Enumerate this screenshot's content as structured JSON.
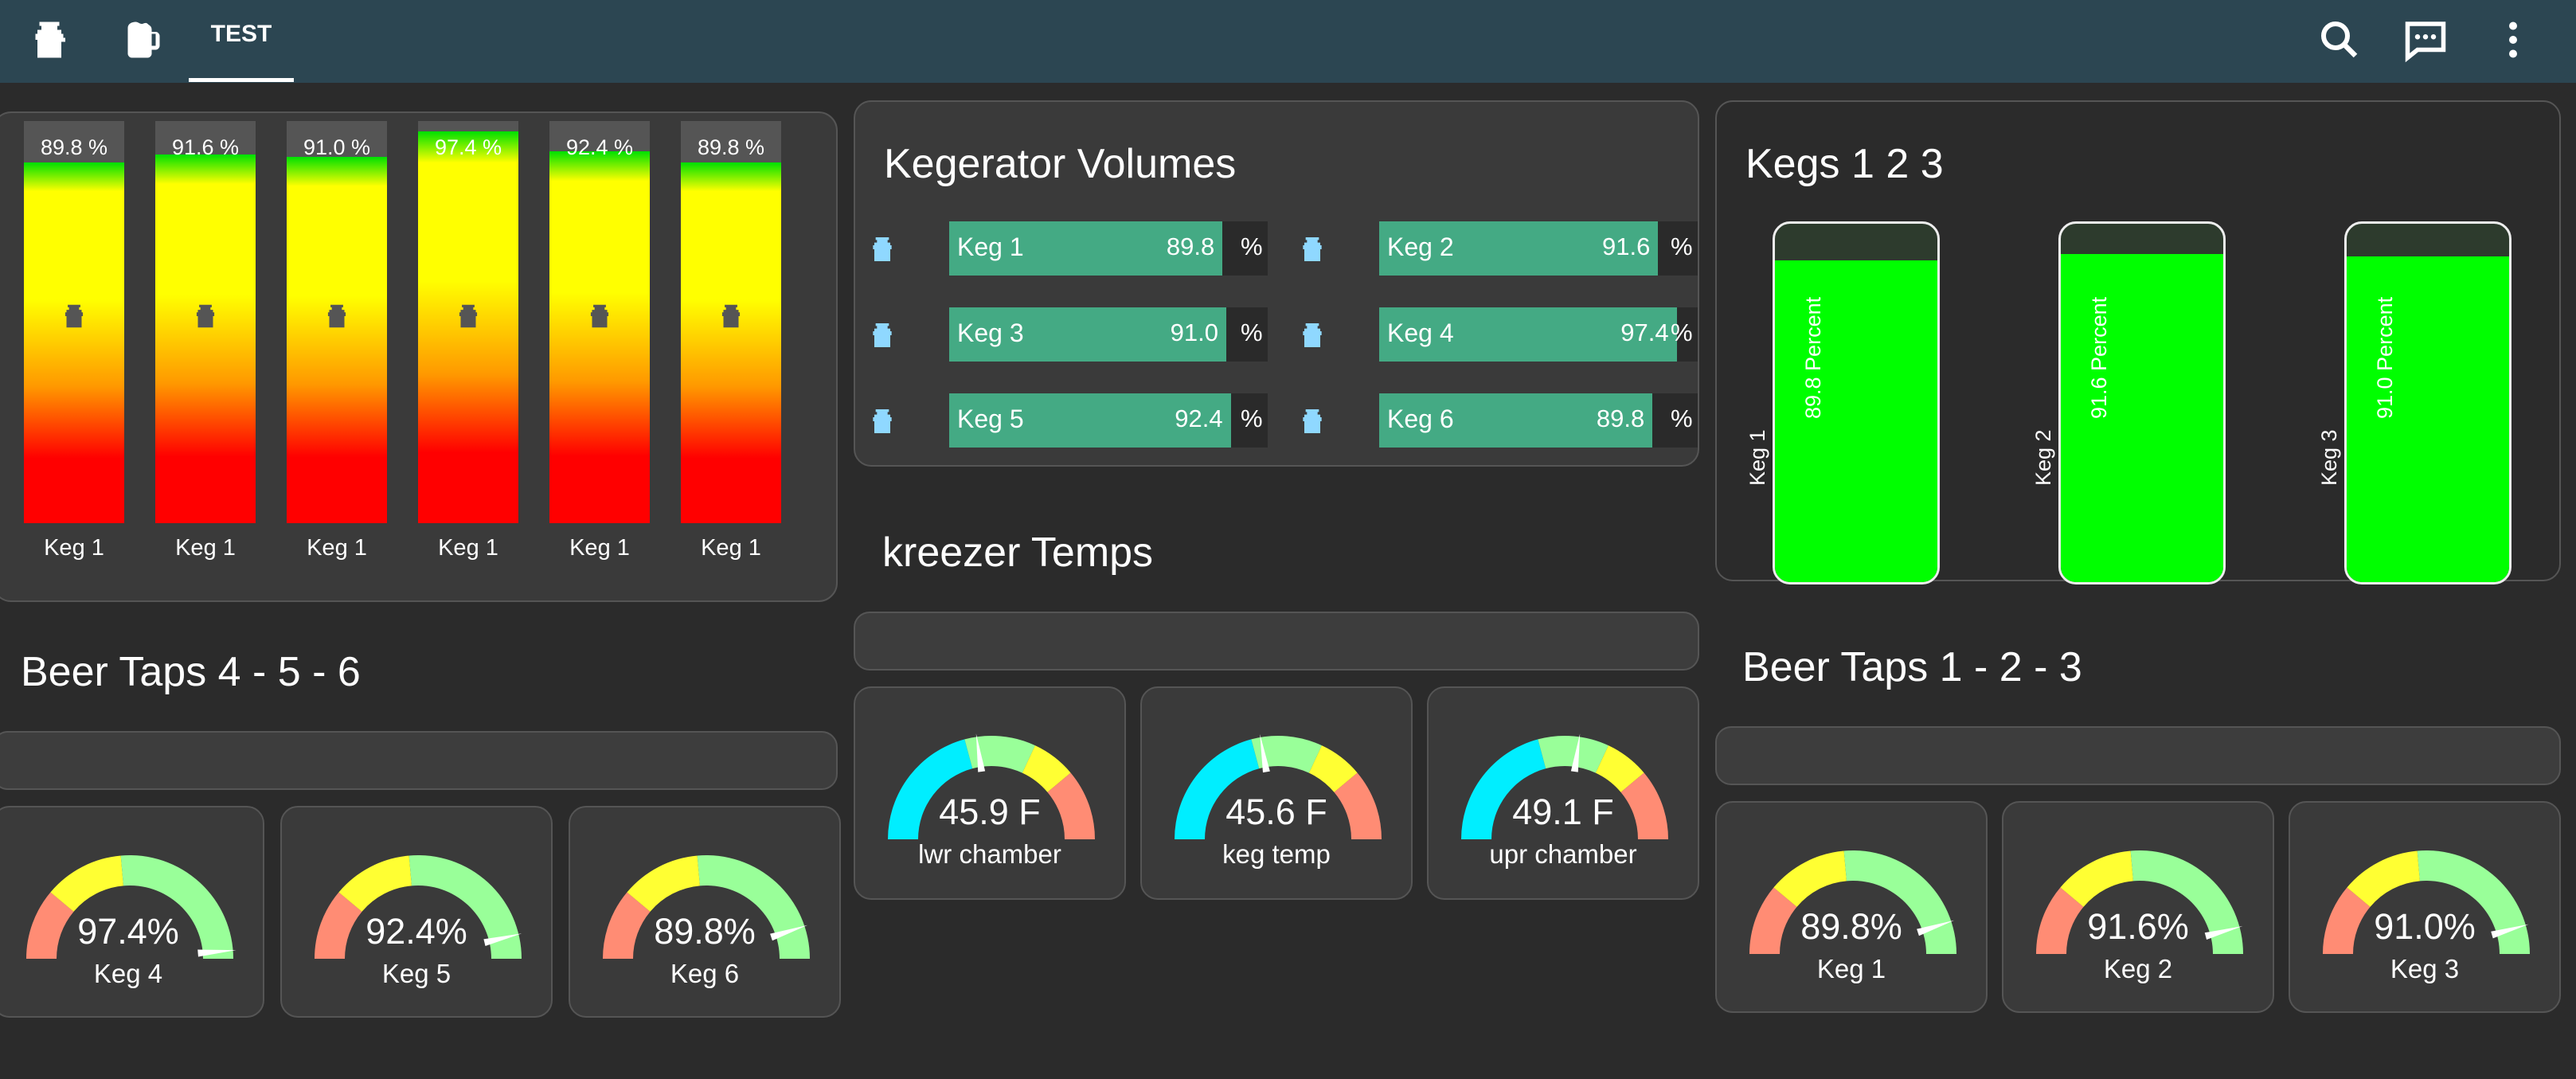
{
  "topbar": {
    "tab_label": "TEST",
    "icons": [
      "keg-icon",
      "beer-mug-icon",
      "search-icon",
      "chat-icon",
      "more-vert-icon"
    ],
    "color": "#2c4652"
  },
  "vertical_bars": {
    "items": [
      {
        "pct": "89.8 %",
        "label": "Keg 1",
        "value": 89.8
      },
      {
        "pct": "91.6 %",
        "label": "Keg 1",
        "value": 91.6
      },
      {
        "pct": "91.0 %",
        "label": "Keg 1",
        "value": 91.0
      },
      {
        "pct": "97.4 %",
        "label": "Keg 1",
        "value": 97.4
      },
      {
        "pct": "92.4 %",
        "label": "Keg 1",
        "value": 92.4
      },
      {
        "pct": "89.8 %",
        "label": "Keg 1",
        "value": 89.8
      }
    ]
  },
  "volumes": {
    "title": "Kegerator Volumes",
    "unit": "%",
    "items": [
      {
        "name": "Keg 1",
        "value": "89.8",
        "v": 89.8
      },
      {
        "name": "Keg 2",
        "value": "91.6",
        "v": 91.6
      },
      {
        "name": "Keg 3",
        "value": "91.0",
        "v": 91.0
      },
      {
        "name": "Keg 4",
        "value": "97.4",
        "v": 97.4
      },
      {
        "name": "Keg 5",
        "value": "92.4",
        "v": 92.4
      },
      {
        "name": "Keg 6",
        "value": "89.8",
        "v": 89.8
      }
    ],
    "fill_color": "#44aa84"
  },
  "kegs123": {
    "title": "Kegs 1 2 3",
    "items": [
      {
        "name": "Keg 1",
        "text": "89.8 Percent",
        "v": 89.8
      },
      {
        "name": "Keg 2",
        "text": "91.6 Percent",
        "v": 91.6
      },
      {
        "name": "Keg 3",
        "text": "91.0 Percent",
        "v": 91.0
      }
    ]
  },
  "temps": {
    "title": "kreezer Temps",
    "gauges": [
      {
        "value": "45.9 F",
        "label": "lwr chamber",
        "v": 45.9
      },
      {
        "value": "45.6 F",
        "label": "keg temp",
        "v": 45.6
      },
      {
        "value": "49.1 F",
        "label": "upr chamber",
        "v": 49.1
      }
    ]
  },
  "taps456": {
    "title": "Beer Taps 4 - 5 - 6",
    "gauges": [
      {
        "value": "97.4%",
        "label": "Keg 4",
        "v": 97.4
      },
      {
        "value": "92.4%",
        "label": "Keg 5",
        "v": 92.4
      },
      {
        "value": "89.8%",
        "label": "Keg 6",
        "v": 89.8
      }
    ]
  },
  "taps123": {
    "title": "Beer Taps 1 - 2 - 3",
    "gauges": [
      {
        "value": "89.8%",
        "label": "Keg 1",
        "v": 89.8
      },
      {
        "value": "91.6%",
        "label": "Keg 2",
        "v": 91.6
      },
      {
        "value": "91.0%",
        "label": "Keg 3",
        "v": 91.0
      }
    ]
  }
}
